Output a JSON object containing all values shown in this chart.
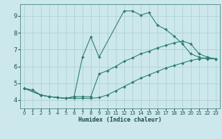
{
  "xlabel": "Humidex (Indice chaleur)",
  "bg_color": "#cce8ec",
  "grid_color": "#aacccc",
  "line_color": "#2e7d72",
  "xlim": [
    -0.5,
    23.5
  ],
  "ylim": [
    3.5,
    9.7
  ],
  "xticks": [
    0,
    1,
    2,
    3,
    4,
    5,
    6,
    7,
    8,
    9,
    10,
    11,
    12,
    13,
    14,
    15,
    16,
    17,
    18,
    19,
    20,
    21,
    22,
    23
  ],
  "yticks": [
    4,
    5,
    6,
    7,
    8,
    9
  ],
  "line1_x": [
    0,
    1,
    2,
    3,
    4,
    5,
    6,
    7,
    8,
    9,
    12,
    13,
    14,
    15,
    16,
    17,
    18,
    19,
    20,
    21,
    22,
    23
  ],
  "line1_y": [
    4.7,
    4.6,
    4.3,
    4.2,
    4.15,
    4.1,
    4.2,
    6.55,
    7.75,
    6.55,
    9.3,
    9.3,
    9.05,
    9.2,
    8.45,
    8.2,
    7.8,
    7.35,
    6.75,
    6.55,
    6.45,
    6.45
  ],
  "line2_x": [
    0,
    2,
    3,
    4,
    5,
    6,
    7,
    8,
    9,
    10,
    11,
    12,
    13,
    14,
    15,
    16,
    17,
    18,
    19,
    20,
    21,
    22,
    23
  ],
  "line2_y": [
    4.7,
    4.3,
    4.2,
    4.15,
    4.1,
    4.2,
    4.2,
    4.2,
    5.55,
    5.75,
    6.0,
    6.3,
    6.5,
    6.75,
    6.9,
    7.1,
    7.25,
    7.4,
    7.5,
    7.35,
    6.75,
    6.55,
    6.45
  ],
  "line3_x": [
    0,
    2,
    3,
    4,
    5,
    6,
    7,
    8,
    9,
    10,
    11,
    12,
    13,
    14,
    15,
    16,
    17,
    18,
    19,
    20,
    21,
    22,
    23
  ],
  "line3_y": [
    4.7,
    4.3,
    4.2,
    4.15,
    4.1,
    4.1,
    4.1,
    4.1,
    4.15,
    4.3,
    4.55,
    4.8,
    5.05,
    5.3,
    5.5,
    5.7,
    5.9,
    6.05,
    6.2,
    6.35,
    6.45,
    6.5,
    6.45
  ]
}
